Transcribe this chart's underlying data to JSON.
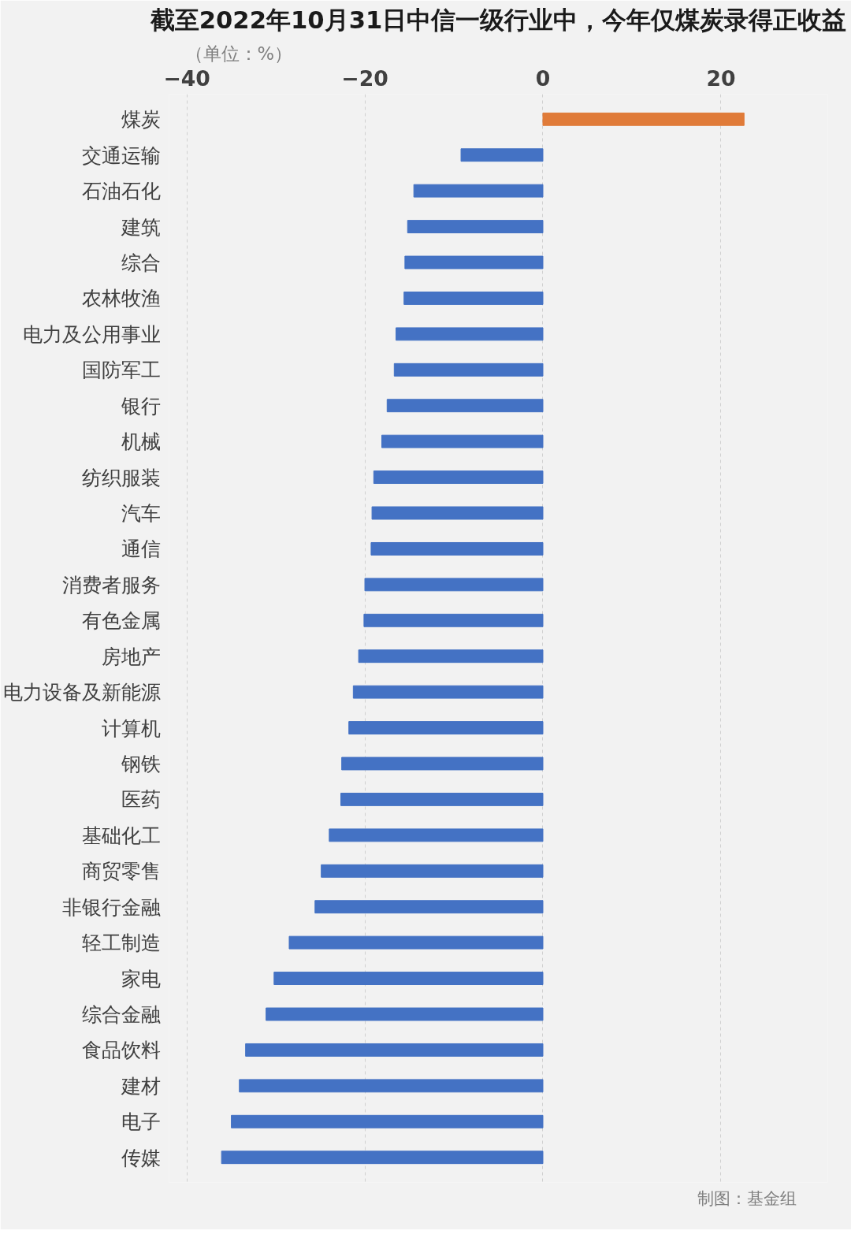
{
  "chart_data": {
    "type": "bar",
    "orientation": "horizontal",
    "title": "截至2022年10月31日中信一级行业中，今年仅煤炭录得正收益",
    "subtitle": "（单位：%）",
    "categories": [
      "煤炭",
      "交通运输",
      "石油石化",
      "建筑",
      "综合",
      "农林牧渔",
      "电力及公用事业",
      "国防军工",
      "银行",
      "机械",
      "纺织服装",
      "汽车",
      "通信",
      "消费者服务",
      "有色金属",
      "房地产",
      "电力设备及新能源",
      "计算机",
      "钢铁",
      "医药",
      "基础化工",
      "商贸零售",
      "非银行金融",
      "轻工制造",
      "家电",
      "综合金融",
      "食品饮料",
      "建材",
      "电子",
      "传媒"
    ],
    "values": [
      22.6,
      -9.2,
      -14.5,
      -15.2,
      -15.5,
      -15.6,
      -16.5,
      -16.7,
      -17.5,
      -18.1,
      -19.0,
      -19.2,
      -19.3,
      -20.0,
      -20.1,
      -20.7,
      -21.3,
      -21.8,
      -22.6,
      -22.7,
      -24.0,
      -24.9,
      -25.6,
      -28.5,
      -30.2,
      -31.1,
      -33.4,
      -34.1,
      -35.0,
      -36.1
    ],
    "colors": [
      "#e07b39",
      "#4472c4",
      "#4472c4",
      "#4472c4",
      "#4472c4",
      "#4472c4",
      "#4472c4",
      "#4472c4",
      "#4472c4",
      "#4472c4",
      "#4472c4",
      "#4472c4",
      "#4472c4",
      "#4472c4",
      "#4472c4",
      "#4472c4",
      "#4472c4",
      "#4472c4",
      "#4472c4",
      "#4472c4",
      "#4472c4",
      "#4472c4",
      "#4472c4",
      "#4472c4",
      "#4472c4",
      "#4472c4",
      "#4472c4",
      "#4472c4",
      "#4472c4",
      "#4472c4"
    ],
    "xlim": [
      -42,
      32
    ],
    "xticks": [
      -40,
      -20,
      0,
      20
    ],
    "grid": "x",
    "annotations": [
      "制图：基金组"
    ]
  }
}
